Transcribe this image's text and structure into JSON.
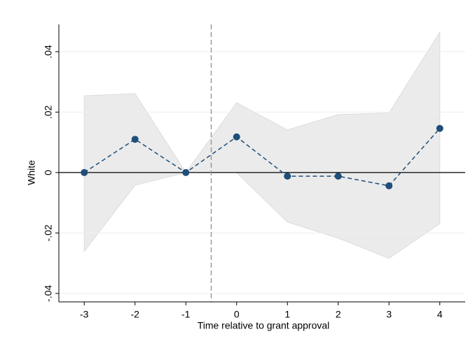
{
  "chart_data": {
    "type": "event-study",
    "x_label": "Time relative to grant approval",
    "y_label": "White",
    "x": [
      -3,
      -2,
      -1,
      0,
      1,
      2,
      3,
      4
    ],
    "values": [
      0,
      0.011,
      0,
      0.0118,
      -0.0012,
      -0.0012,
      -0.0044,
      0.0146
    ],
    "ci_upper": [
      0.0254,
      0.0261,
      0,
      0.0231,
      0.0141,
      0.0192,
      0.0197,
      0.0465
    ],
    "ci_lower": [
      -0.0261,
      -0.0042,
      0,
      0,
      -0.0164,
      -0.0217,
      -0.0284,
      -0.0169
    ],
    "color": "#1f4e79",
    "band_color": "#ebebeb",
    "ref_x": -0.5,
    "ref_y": 0,
    "xlim": [
      -3.5,
      4.5
    ],
    "ylim": [
      -0.0428,
      0.049
    ],
    "xticks": [
      -3,
      -2,
      -1,
      0,
      1,
      2,
      3,
      4
    ],
    "yticks": [
      {
        "value": -0.04,
        "label": "-.04"
      },
      {
        "value": -0.02,
        "label": "-.02"
      },
      0,
      {
        "value": 0.02,
        "label": ".02"
      },
      {
        "value": 0.04,
        "label": ".04"
      }
    ],
    "grid": true
  }
}
